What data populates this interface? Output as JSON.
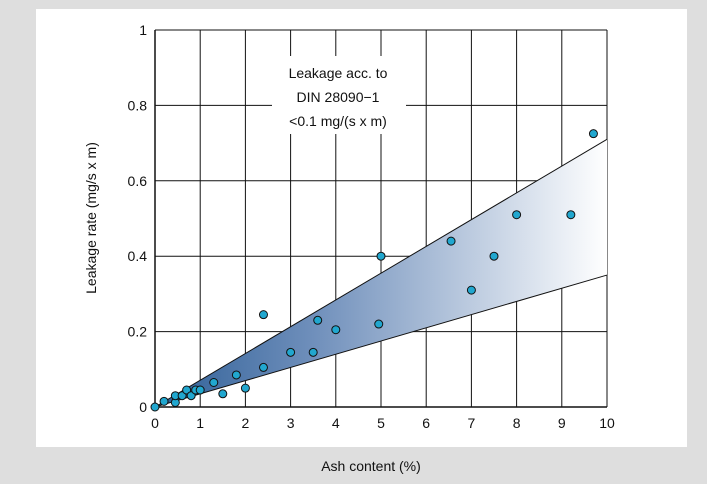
{
  "chart_data": {
    "type": "scatter",
    "title": "",
    "xlabel": "Ash content (%)",
    "ylabel": "Leakage rate (mg/s x m)",
    "xlim": [
      0,
      10
    ],
    "ylim": [
      0,
      1
    ],
    "x_ticks": [
      "0",
      "1",
      "2",
      "3",
      "4",
      "5",
      "6",
      "7",
      "8",
      "9",
      "10"
    ],
    "y_ticks": [
      "0",
      "0.2",
      "0.4",
      "0.6",
      "0.8",
      "1"
    ],
    "grid": true,
    "annotation": [
      "Leakage acc. to",
      "DIN 28090−1",
      "<0.1 mg/(s x m)"
    ],
    "band": {
      "upper_line": [
        [
          0,
          0
        ],
        [
          10,
          0.71
        ]
      ],
      "lower_line": [
        [
          0,
          0
        ],
        [
          10,
          0.35
        ]
      ]
    },
    "marker_color": "#21a7cf",
    "band_color_dark": "#2d5e96",
    "band_color_light": "#ffffff",
    "points": [
      [
        0,
        0
      ],
      [
        0.2,
        0.015
      ],
      [
        0.45,
        0.012
      ],
      [
        0.45,
        0.03
      ],
      [
        0.6,
        0.03
      ],
      [
        0.7,
        0.045
      ],
      [
        0.8,
        0.03
      ],
      [
        0.9,
        0.045
      ],
      [
        1.0,
        0.045
      ],
      [
        1.3,
        0.065
      ],
      [
        1.5,
        0.035
      ],
      [
        1.8,
        0.085
      ],
      [
        2.0,
        0.05
      ],
      [
        2.4,
        0.105
      ],
      [
        2.4,
        0.245
      ],
      [
        3.0,
        0.145
      ],
      [
        3.5,
        0.145
      ],
      [
        3.6,
        0.23
      ],
      [
        4.0,
        0.205
      ],
      [
        4.95,
        0.22
      ],
      [
        5.0,
        0.4
      ],
      [
        6.55,
        0.44
      ],
      [
        7.0,
        0.31
      ],
      [
        7.5,
        0.4
      ],
      [
        8.0,
        0.51
      ],
      [
        9.2,
        0.51
      ],
      [
        9.7,
        0.725
      ]
    ]
  }
}
